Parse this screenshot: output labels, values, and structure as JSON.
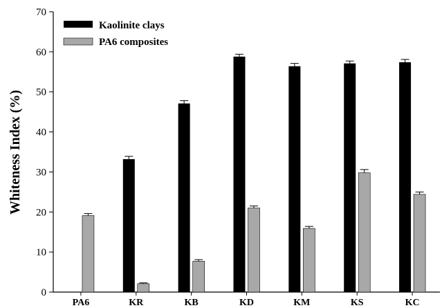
{
  "chart_data": {
    "type": "bar",
    "title": "",
    "xlabel": "",
    "ylabel": "Whiteness Index (%)",
    "ylim": [
      0,
      70
    ],
    "yticks": [
      0,
      10,
      20,
      30,
      40,
      50,
      60,
      70
    ],
    "categories": [
      "PA6",
      "KR",
      "KB",
      "KD",
      "KM",
      "KS",
      "KC"
    ],
    "legend_position": "top-left",
    "grid": false,
    "series": [
      {
        "name": "Kaolinite clays",
        "color": "#000000",
        "values": [
          null,
          33.2,
          47.1,
          58.8,
          56.4,
          57.1,
          57.4
        ],
        "errors": [
          null,
          0.7,
          0.7,
          0.6,
          0.7,
          0.6,
          0.7
        ]
      },
      {
        "name": "PA6 composites",
        "color": "#a8a8a8",
        "values": [
          19.1,
          2.1,
          7.7,
          21.0,
          15.9,
          29.8,
          24.4
        ],
        "errors": [
          0.5,
          0.2,
          0.4,
          0.5,
          0.5,
          0.8,
          0.6
        ]
      }
    ]
  }
}
